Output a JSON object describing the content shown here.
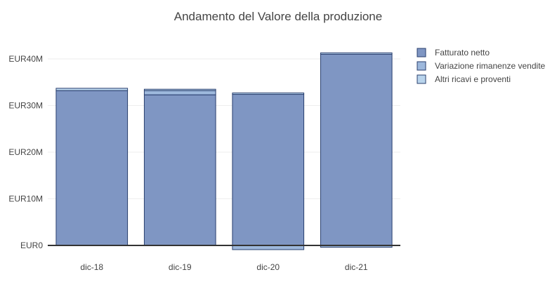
{
  "chart_data": {
    "type": "bar",
    "stacked": true,
    "title": "Andamento del Valore della produzione",
    "categories": [
      "dic-18",
      "dic-19",
      "dic-20",
      "dic-21"
    ],
    "series": [
      {
        "name": "Fatturato netto",
        "values": [
          33.2,
          32.3,
          32.4,
          41.0
        ],
        "color": "#7f96c3"
      },
      {
        "name": "Variazione rimanenze vendite",
        "values": [
          0.0,
          0.9,
          -0.9,
          -0.4
        ],
        "color": "#9db8dc"
      },
      {
        "name": "Altri ricavi e proventi",
        "values": [
          0.5,
          0.3,
          0.3,
          0.3
        ],
        "color": "#b9d4ec"
      }
    ],
    "yticks": [
      {
        "value": 0,
        "label": "EUR0"
      },
      {
        "value": 10,
        "label": "EUR10M"
      },
      {
        "value": 20,
        "label": "EUR20M"
      },
      {
        "value": 30,
        "label": "EUR30M"
      },
      {
        "value": 40,
        "label": "EUR40M"
      }
    ],
    "ylim": [
      -1.2,
      44
    ],
    "grid": true,
    "legend_position": "top-right",
    "border_color": "#2a3f6e"
  }
}
